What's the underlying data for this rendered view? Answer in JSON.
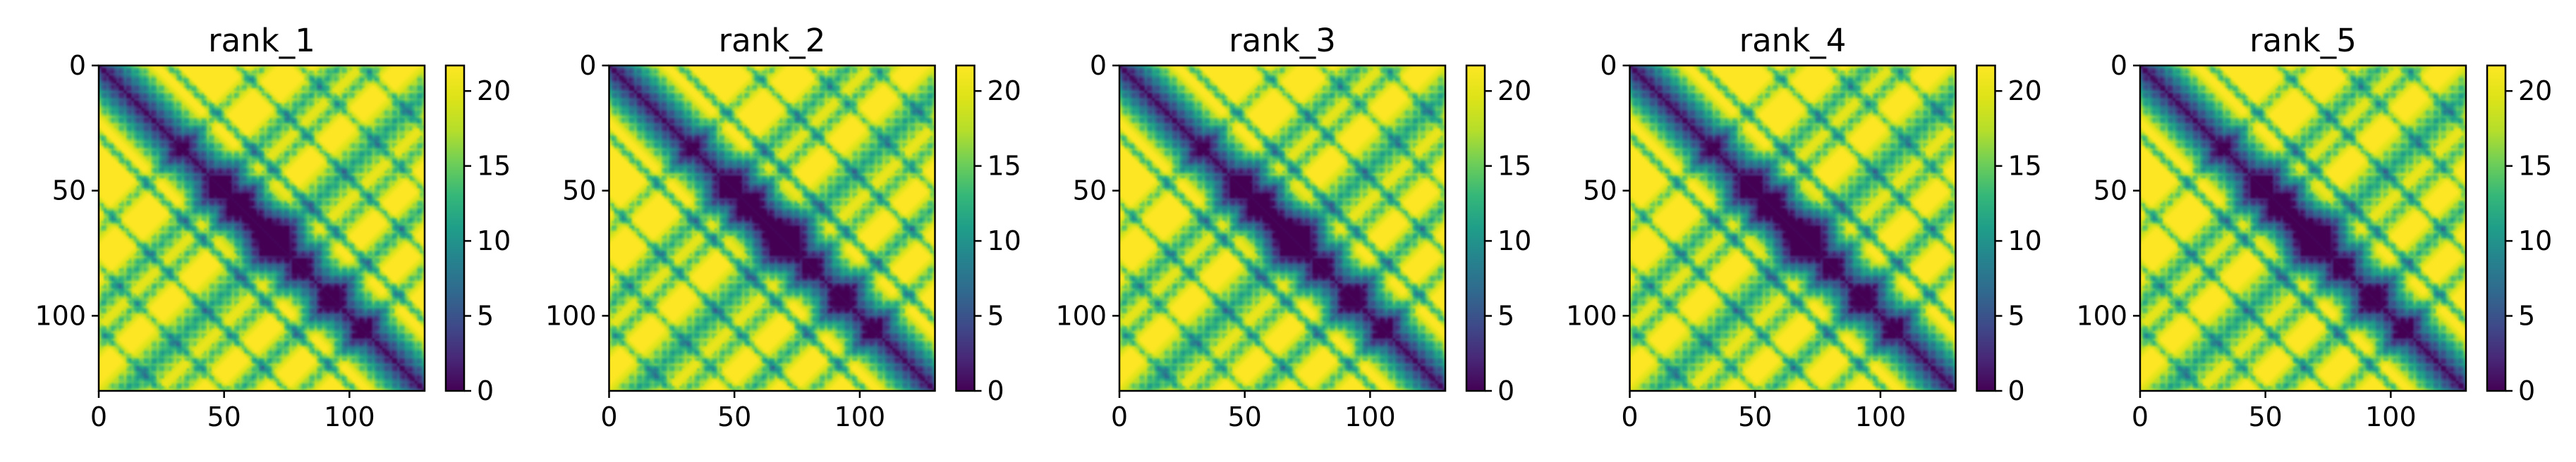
{
  "chart_data": [
    {
      "type": "heatmap",
      "title": "rank_1",
      "x_ticks": [
        0,
        50,
        100
      ],
      "y_ticks": [
        0,
        50,
        100
      ],
      "xlim": [
        0,
        130
      ],
      "ylim": [
        130,
        0
      ],
      "colorbar": {
        "ticks": [
          0,
          5,
          10,
          15,
          20
        ],
        "range": [
          0,
          21.7
        ],
        "colormap": "viridis"
      }
    },
    {
      "type": "heatmap",
      "title": "rank_2",
      "x_ticks": [
        0,
        50,
        100
      ],
      "y_ticks": [
        0,
        50,
        100
      ],
      "xlim": [
        0,
        130
      ],
      "ylim": [
        130,
        0
      ],
      "colorbar": {
        "ticks": [
          0,
          5,
          10,
          15,
          20
        ],
        "range": [
          0,
          21.7
        ],
        "colormap": "viridis"
      }
    },
    {
      "type": "heatmap",
      "title": "rank_3",
      "x_ticks": [
        0,
        50,
        100
      ],
      "y_ticks": [
        0,
        50,
        100
      ],
      "xlim": [
        0,
        130
      ],
      "ylim": [
        130,
        0
      ],
      "colorbar": {
        "ticks": [
          0,
          5,
          10,
          15,
          20
        ],
        "range": [
          0,
          21.7
        ],
        "colormap": "viridis"
      }
    },
    {
      "type": "heatmap",
      "title": "rank_4",
      "x_ticks": [
        0,
        50,
        100
      ],
      "y_ticks": [
        0,
        50,
        100
      ],
      "xlim": [
        0,
        130
      ],
      "ylim": [
        130,
        0
      ],
      "colorbar": {
        "ticks": [
          0,
          5,
          10,
          15,
          20
        ],
        "range": [
          0,
          21.7
        ],
        "colormap": "viridis"
      }
    },
    {
      "type": "heatmap",
      "title": "rank_5",
      "x_ticks": [
        0,
        50,
        100
      ],
      "y_ticks": [
        0,
        50,
        100
      ],
      "xlim": [
        0,
        130
      ],
      "ylim": [
        130,
        0
      ],
      "colorbar": {
        "ticks": [
          0,
          5,
          10,
          15,
          20
        ],
        "range": [
          0,
          21.7
        ],
        "colormap": "viridis"
      }
    }
  ],
  "colors": {
    "viridis_low": "#440154",
    "viridis_mid": "#21918c",
    "viridis_high": "#fde725"
  }
}
